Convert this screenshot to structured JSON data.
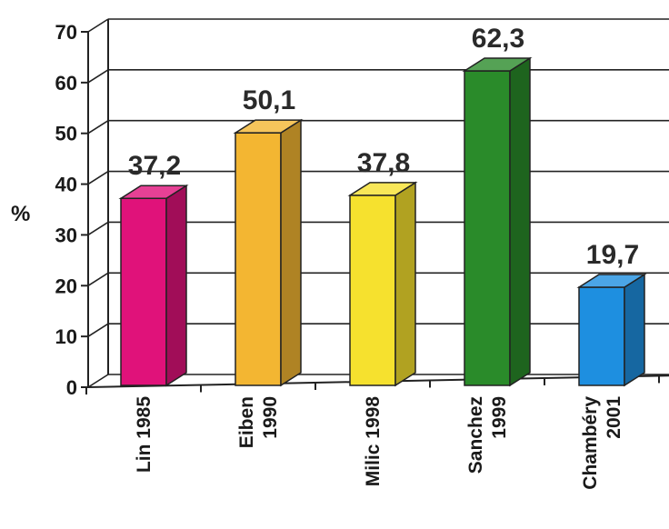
{
  "chart_data": {
    "type": "bar",
    "style": "3d-column",
    "ylabel": "%",
    "ylim": [
      0,
      70
    ],
    "yticks": [
      "0",
      "10",
      "20",
      "30",
      "40",
      "50",
      "60",
      "70"
    ],
    "grid": true,
    "legend": "none",
    "categories": [
      {
        "lines": [
          "Lin 1985"
        ]
      },
      {
        "lines": [
          "Eiben",
          "1990"
        ]
      },
      {
        "lines": [
          "Milic 1998"
        ]
      },
      {
        "lines": [
          "Sanchez",
          "1999"
        ]
      },
      {
        "lines": [
          "Chambéry",
          "2001"
        ]
      }
    ],
    "values": [
      37.2,
      50.1,
      37.8,
      62.3,
      19.7
    ],
    "value_labels": [
      "37,2",
      "50,1",
      "37,8",
      "62,3",
      "19,7"
    ],
    "colors": [
      "#e0127a",
      "#f3b632",
      "#f6e12e",
      "#2a8b2a",
      "#1e8fe0"
    ]
  }
}
